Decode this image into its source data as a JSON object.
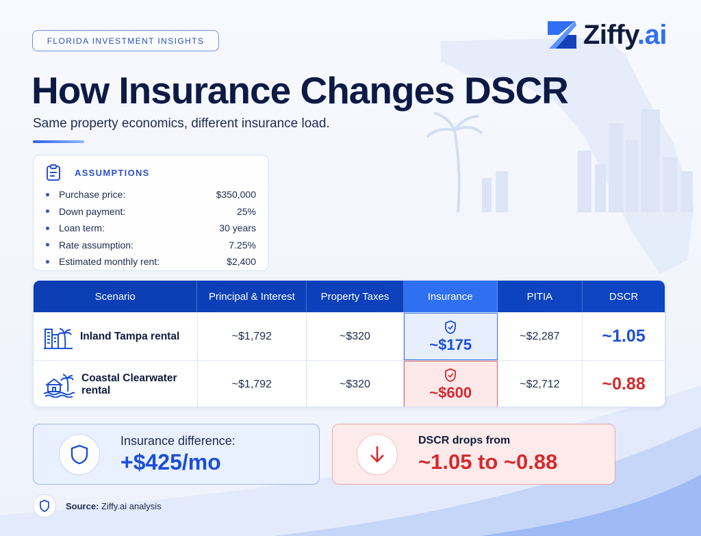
{
  "eyebrow": "FLORIDA INVESTMENT INSIGHTS",
  "brand": {
    "name": "Ziffy",
    "suffix": ".ai",
    "logo_icon": "z-logo-icon"
  },
  "title": "How Insurance Changes DSCR",
  "subtitle": "Same property economics, different insurance load.",
  "assumptions": {
    "title": "ASSUMPTIONS",
    "icon": "clipboard-icon",
    "items": [
      {
        "label": "Purchase price:",
        "value": "$350,000"
      },
      {
        "label": "Down payment:",
        "value": "25%"
      },
      {
        "label": "Loan term:",
        "value": "30 years"
      },
      {
        "label": "Rate assumption:",
        "value": "7.25%"
      },
      {
        "label": "Estimated monthly rent:",
        "value": "$2,400"
      }
    ]
  },
  "table": {
    "headers": [
      "Scenario",
      "Principal & Interest",
      "Property Taxes",
      "Insurance",
      "PITIA",
      "DSCR"
    ],
    "rows": [
      {
        "scenario": "Inland Tampa rental",
        "icon": "city-buildings-icon",
        "pi": "~$1,792",
        "taxes": "~$320",
        "insurance": "~$175",
        "pitia": "~$2,287",
        "dscr": "~1.05"
      },
      {
        "scenario": "Coastal Clearwater rental",
        "icon": "beach-house-icon",
        "pi": "~$1,792",
        "taxes": "~$320",
        "insurance": "~$600",
        "pitia": "~$2,712",
        "dscr": "~0.88"
      }
    ]
  },
  "insurance_diff": {
    "label": "Insurance difference:",
    "value": "+$425/mo",
    "icon": "shield-icon"
  },
  "dscr_drop": {
    "label": "DSCR drops from",
    "value": "~1.05 to ~0.88",
    "icon": "arrow-down-icon"
  },
  "source": {
    "label": "Source:",
    "value": "Ziffy.ai analysis"
  },
  "colors": {
    "navy": "#0b3db3",
    "accent": "#2f6ff2",
    "good": "#1c4fd6",
    "bad": "#d42a2f"
  }
}
